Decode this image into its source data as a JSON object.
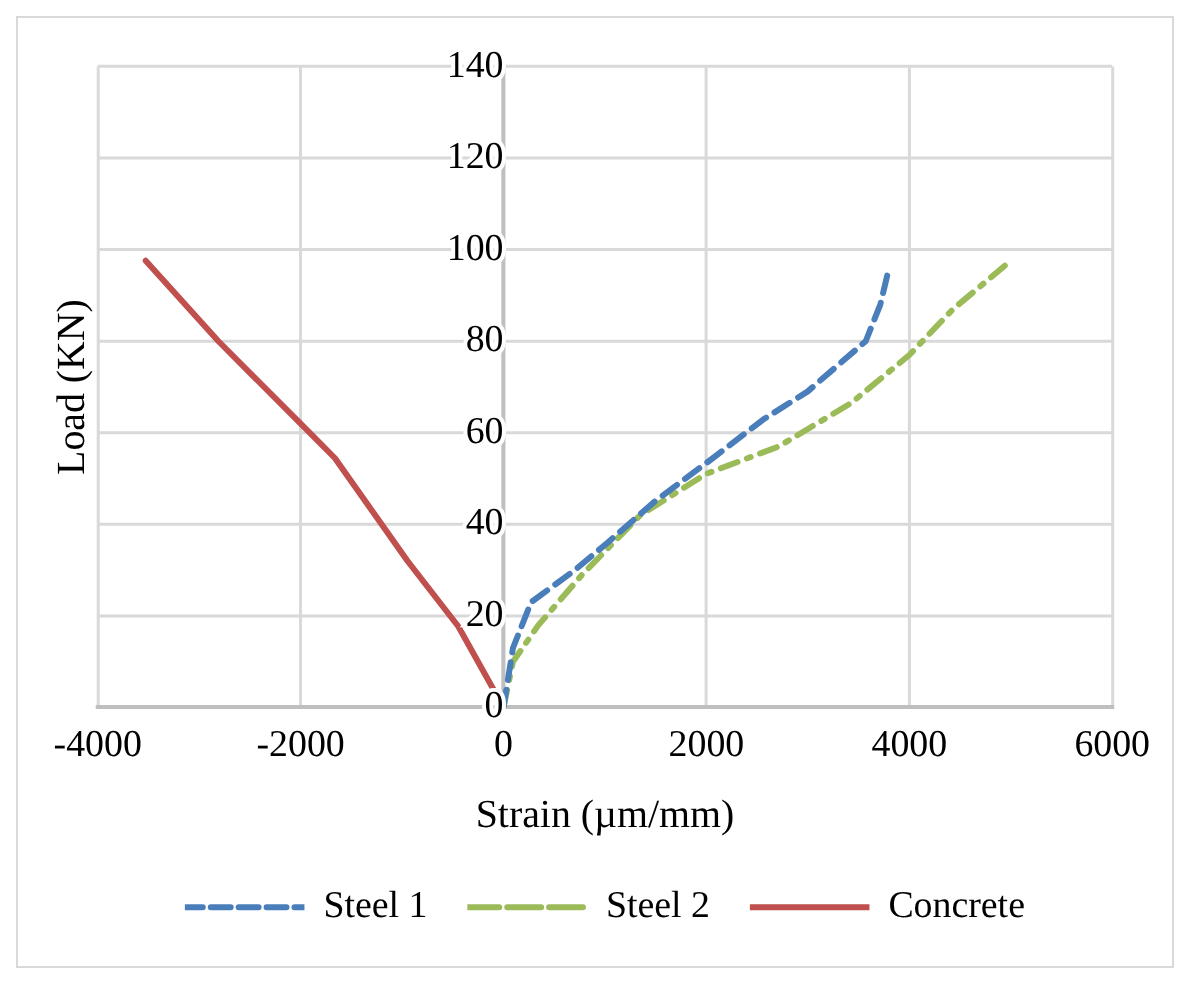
{
  "chart_data": {
    "type": "line",
    "xlabel": "Strain (µm/mm)",
    "ylabel": "Load (KN)",
    "xlim": [
      -4000,
      6000
    ],
    "xticks": [
      -4000,
      -2000,
      0,
      2000,
      4000,
      6000
    ],
    "ylim": [
      0,
      140
    ],
    "yticks": [
      0,
      20,
      40,
      60,
      80,
      100,
      120,
      140
    ],
    "grid": true,
    "legend": "bottom",
    "marker": "none",
    "series": [
      {
        "name": "Steel 1",
        "color": "#4a7ebb",
        "line_style": "dashed",
        "x": [
          0,
          93,
          272,
          703,
          1025,
          1491,
          2065,
          2566,
          2996,
          3570,
          3714,
          3800
        ],
        "values": [
          0,
          13,
          23,
          30,
          36,
          45,
          54.5,
          63,
          69,
          80,
          88,
          96
        ]
      },
      {
        "name": "Steel 2",
        "color": "#9bbb59",
        "line_style": "dashdot",
        "x": [
          0,
          93,
          344,
          774,
          1348,
          1993,
          2710,
          3426,
          4000,
          4430,
          4968
        ],
        "values": [
          0,
          10,
          18,
          29,
          42,
          51,
          57,
          66.5,
          77,
          87,
          97
        ]
      },
      {
        "name": "Concrete",
        "color": "#c0504d",
        "line_style": "solid",
        "x": [
          0,
          -445,
          -946,
          -1663,
          -2022,
          -2810,
          -3527
        ],
        "values": [
          0,
          17.7,
          32,
          54.5,
          62.5,
          80,
          97.6
        ]
      }
    ]
  }
}
